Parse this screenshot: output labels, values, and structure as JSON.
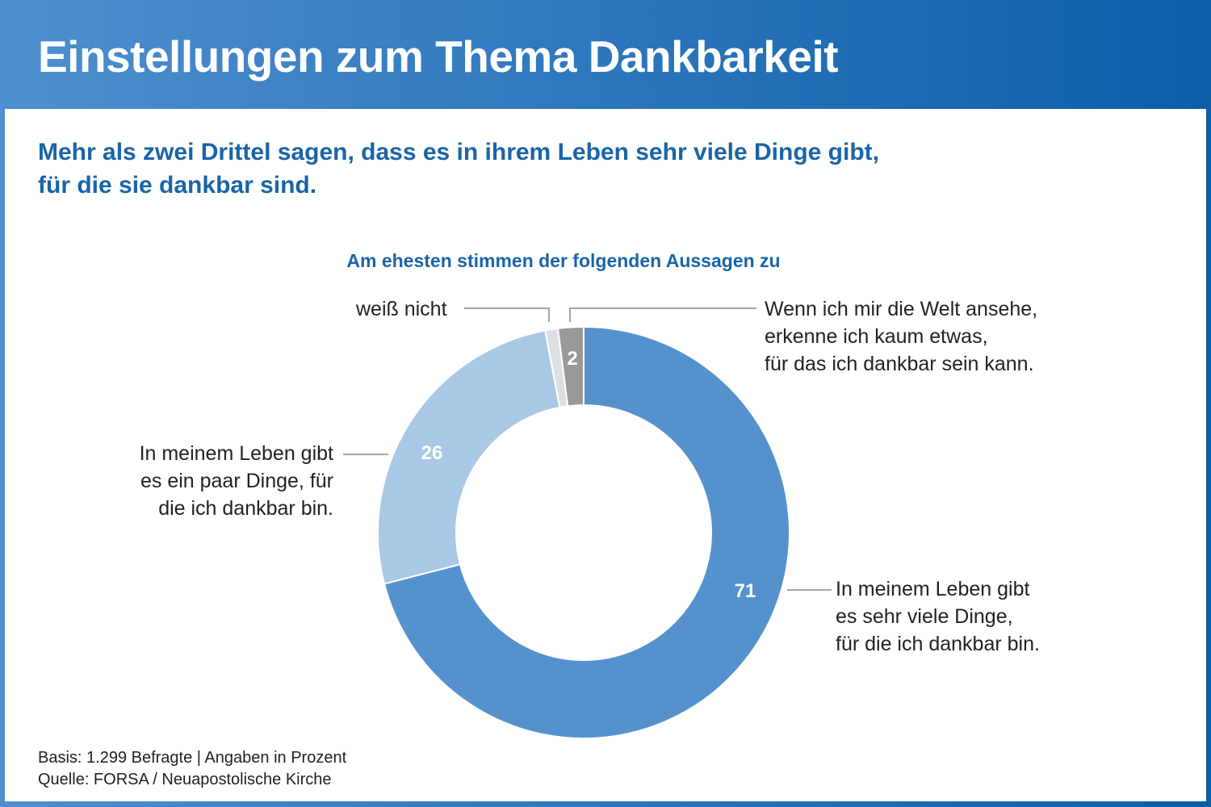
{
  "header": {
    "title": "Einstellungen zum Thema Dankbarkeit"
  },
  "subtitle": {
    "line1": "Mehr als zwei Drittel sagen, dass es in ihrem Leben sehr viele Dinge gibt,",
    "line2": "für die sie dankbar sind."
  },
  "chart_data": {
    "type": "pie",
    "title": "Am ehesten stimmen der folgenden Aussagen zu",
    "donut": true,
    "slices": [
      {
        "label": "In meinem Leben gibt es sehr viele Dinge, für die ich dankbar bin.",
        "lines": [
          "In meinem Leben gibt",
          "es sehr viele Dinge,",
          "für die ich dankbar bin."
        ],
        "value": 71,
        "value_label": "71",
        "color": "#5592cd"
      },
      {
        "label": "In meinem Leben gibt es ein paar Dinge, für die ich dankbar bin.",
        "lines": [
          "In meinem Leben gibt",
          "es ein paar Dinge, für",
          "die ich dankbar bin."
        ],
        "value": 26,
        "value_label": "26",
        "color": "#a9c8e6"
      },
      {
        "label": "weiß nicht",
        "lines": [
          "weiß nicht"
        ],
        "value": 1,
        "value_label": "",
        "color": "#dedfe0"
      },
      {
        "label": "Wenn ich mir die Welt ansehe, erkenne ich kaum etwas, für das ich dankbar sein kann.",
        "lines": [
          "Wenn ich mir die Welt ansehe,",
          "erkenne ich kaum etwas,",
          "für das ich dankbar sein kann."
        ],
        "value": 2,
        "value_label": "2",
        "color": "#999999"
      }
    ],
    "unit": "Prozent"
  },
  "footer": {
    "line1": "Basis: 1.299 Befragte | Angaben in Prozent",
    "line2": "Quelle: FORSA / Neuapostolische Kirche"
  }
}
